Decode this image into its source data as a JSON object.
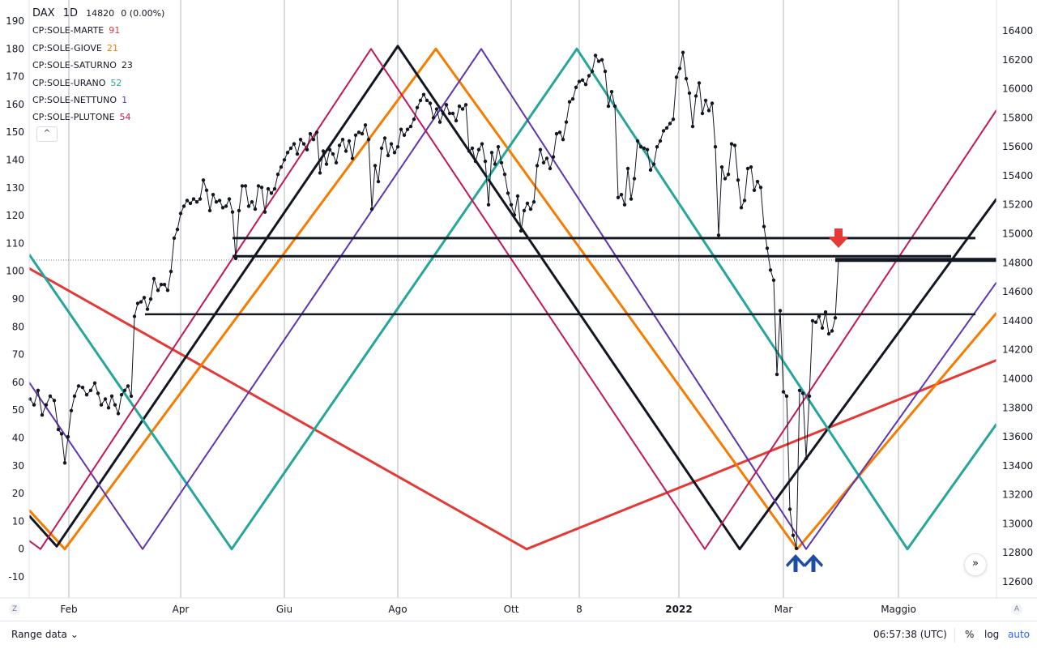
{
  "symbol": {
    "name": "DAX",
    "interval": "1D",
    "last": "14820",
    "change": "0 (0.00%)"
  },
  "legend": [
    {
      "name": "CP:SOLE-MARTE",
      "value": "91",
      "color": "#e53935"
    },
    {
      "name": "CP:SOLE-GIOVE",
      "value": "21",
      "color": "#f57c00"
    },
    {
      "name": "CP:SOLE-SATURNO",
      "value": "23",
      "color": "#131722"
    },
    {
      "name": "CP:SOLE-URANO",
      "value": "52",
      "color": "#26a69a"
    },
    {
      "name": "CP:SOLE-NETTUNO",
      "value": "1",
      "color": "#5e35b1"
    },
    {
      "name": "CP:SOLE-PLUTONE",
      "value": "54",
      "color": "#c2185b"
    }
  ],
  "collapse_glyph": "^",
  "bottom": {
    "range_label": "Range data",
    "range_chevron": "⌄",
    "clock": "06:57:38 (UTC)",
    "percent": "%",
    "log": "log",
    "auto": "auto"
  },
  "corner_left": "Z",
  "corner_right": "A",
  "goto_glyph": "»",
  "chart_data": {
    "type": "line",
    "left_axis": {
      "ticks": [
        190,
        180,
        170,
        160,
        150,
        140,
        130,
        120,
        110,
        100,
        90,
        80,
        70,
        60,
        50,
        40,
        30,
        20,
        10,
        0,
        -10
      ],
      "range": [
        -12,
        190
      ]
    },
    "right_axis": {
      "ticks": [
        16400,
        16200,
        16000,
        15800,
        15600,
        15400,
        15200,
        15000,
        14800,
        14600,
        14400,
        14200,
        14000,
        13800,
        13600,
        13400,
        13200,
        13000,
        12800,
        12600
      ],
      "range": [
        12580,
        16420
      ]
    },
    "x_axis": {
      "labels": [
        "Feb",
        "Apr",
        "Giu",
        "Ago",
        "Ott",
        "8",
        "2022",
        "Mar",
        "Maggio"
      ],
      "label_x": [
        85,
        223,
        351,
        491,
        631,
        715,
        838,
        967,
        1109
      ],
      "start_x": 36,
      "end_x": 1230,
      "bold_labels": [
        "2022"
      ]
    },
    "dotted_level": 104,
    "cycle_series": [
      {
        "name": "CP:SOLE-MARTE",
        "color": "#e53935",
        "width": 3,
        "points": [
          [
            36,
            101
          ],
          [
            650,
            0
          ],
          [
            1230,
            68
          ]
        ]
      },
      {
        "name": "CP:SOLE-GIOVE",
        "color": "#f57c00",
        "width": 3,
        "points": [
          [
            36,
            14
          ],
          [
            80,
            0
          ],
          [
            538,
            180
          ],
          [
            984,
            0
          ],
          [
            1230,
            85
          ]
        ]
      },
      {
        "name": "CP:SOLE-SATURNO",
        "color": "#131722",
        "width": 3,
        "points": [
          [
            36,
            12
          ],
          [
            70,
            1
          ],
          [
            491,
            181
          ],
          [
            913,
            0
          ],
          [
            1230,
            126
          ]
        ]
      },
      {
        "name": "CP:SOLE-URANO",
        "color": "#26a69a",
        "width": 3,
        "points": [
          [
            36,
            106
          ],
          [
            286,
            0
          ],
          [
            712,
            180
          ],
          [
            1120,
            0
          ],
          [
            1230,
            45
          ]
        ]
      },
      {
        "name": "CP:SOLE-NETTUNO",
        "color": "#5e35b1",
        "width": 2,
        "points": [
          [
            36,
            60
          ],
          [
            176,
            0
          ],
          [
            594,
            180
          ],
          [
            995,
            0
          ],
          [
            1230,
            96
          ]
        ]
      },
      {
        "name": "CP:SOLE-PLUTONE",
        "color": "#c2185b",
        "width": 2,
        "points": [
          [
            36,
            3
          ],
          [
            50,
            0
          ],
          [
            458,
            180
          ],
          [
            870,
            0
          ],
          [
            1230,
            158
          ]
        ]
      }
    ],
    "dax_series": {
      "name": "DAX",
      "color": "#131722",
      "points": [
        [
          37,
          13860
        ],
        [
          42,
          13820
        ],
        [
          47,
          13920
        ],
        [
          52,
          13750
        ],
        [
          57,
          13820
        ],
        [
          62,
          13880
        ],
        [
          67,
          13850
        ],
        [
          72,
          13650
        ],
        [
          76,
          13620
        ],
        [
          80,
          13420
        ],
        [
          84,
          13600
        ],
        [
          88,
          13780
        ],
        [
          92,
          13880
        ],
        [
          97,
          13950
        ],
        [
          102,
          13940
        ],
        [
          107,
          13890
        ],
        [
          112,
          13920
        ],
        [
          117,
          13970
        ],
        [
          121,
          13900
        ],
        [
          125,
          13820
        ],
        [
          130,
          13860
        ],
        [
          134,
          13800
        ],
        [
          138,
          13880
        ],
        [
          142,
          13820
        ],
        [
          146,
          13760
        ],
        [
          150,
          13890
        ],
        [
          154,
          13920
        ],
        [
          158,
          13950
        ],
        [
          162,
          13880
        ],
        [
          166,
          14430
        ],
        [
          170,
          14520
        ],
        [
          174,
          14530
        ],
        [
          178,
          14560
        ],
        [
          182,
          14480
        ],
        [
          186,
          14550
        ],
        [
          190,
          14690
        ],
        [
          195,
          14610
        ],
        [
          199,
          14650
        ],
        [
          203,
          14650
        ],
        [
          207,
          14610
        ],
        [
          211,
          14740
        ],
        [
          215,
          14970
        ],
        [
          219,
          15030
        ],
        [
          223,
          15140
        ],
        [
          227,
          15190
        ],
        [
          231,
          15230
        ],
        [
          235,
          15210
        ],
        [
          239,
          15240
        ],
        [
          243,
          15220
        ],
        [
          247,
          15240
        ],
        [
          251,
          15370
        ],
        [
          255,
          15300
        ],
        [
          259,
          15160
        ],
        [
          263,
          15270
        ],
        [
          267,
          15220
        ],
        [
          271,
          15230
        ],
        [
          275,
          15180
        ],
        [
          279,
          15190
        ],
        [
          283,
          15240
        ],
        [
          287,
          15150
        ],
        [
          291,
          14830
        ],
        [
          295,
          15160
        ],
        [
          299,
          15330
        ],
        [
          303,
          15330
        ],
        [
          307,
          15190
        ],
        [
          311,
          15220
        ],
        [
          315,
          15170
        ],
        [
          319,
          15330
        ],
        [
          323,
          15320
        ],
        [
          327,
          15150
        ],
        [
          331,
          15310
        ],
        [
          335,
          15280
        ],
        [
          339,
          15310
        ],
        [
          343,
          15410
        ],
        [
          347,
          15460
        ],
        [
          351,
          15510
        ],
        [
          355,
          15560
        ],
        [
          359,
          15590
        ],
        [
          363,
          15620
        ],
        [
          367,
          15550
        ],
        [
          371,
          15650
        ],
        [
          375,
          15620
        ],
        [
          379,
          15580
        ],
        [
          383,
          15690
        ],
        [
          387,
          15650
        ],
        [
          391,
          15700
        ],
        [
          395,
          15420
        ],
        [
          399,
          15570
        ],
        [
          403,
          15480
        ],
        [
          407,
          15580
        ],
        [
          411,
          15550
        ],
        [
          415,
          15490
        ],
        [
          419,
          15610
        ],
        [
          423,
          15650
        ],
        [
          427,
          15570
        ],
        [
          431,
          15640
        ],
        [
          435,
          15520
        ],
        [
          439,
          15680
        ],
        [
          443,
          15700
        ],
        [
          447,
          15690
        ],
        [
          451,
          15750
        ],
        [
          455,
          15650
        ],
        [
          459,
          15170
        ],
        [
          463,
          15470
        ],
        [
          467,
          15360
        ],
        [
          471,
          15590
        ],
        [
          475,
          15660
        ],
        [
          479,
          15540
        ],
        [
          483,
          15620
        ],
        [
          487,
          15560
        ],
        [
          491,
          15600
        ],
        [
          495,
          15720
        ],
        [
          499,
          15680
        ],
        [
          503,
          15720
        ],
        [
          507,
          15740
        ],
        [
          511,
          15790
        ],
        [
          515,
          15870
        ],
        [
          519,
          15920
        ],
        [
          523,
          15960
        ],
        [
          527,
          15920
        ],
        [
          531,
          15900
        ],
        [
          535,
          15800
        ],
        [
          539,
          15860
        ],
        [
          543,
          15770
        ],
        [
          547,
          15830
        ],
        [
          551,
          15890
        ],
        [
          555,
          15830
        ],
        [
          559,
          15830
        ],
        [
          563,
          15780
        ],
        [
          567,
          15880
        ],
        [
          571,
          15860
        ],
        [
          575,
          15890
        ],
        [
          579,
          15570
        ],
        [
          583,
          15590
        ],
        [
          587,
          15500
        ],
        [
          591,
          15580
        ],
        [
          595,
          15620
        ],
        [
          599,
          15500
        ],
        [
          603,
          15200
        ],
        [
          607,
          15560
        ],
        [
          611,
          15480
        ],
        [
          615,
          15600
        ],
        [
          619,
          15490
        ],
        [
          623,
          15410
        ],
        [
          627,
          15280
        ],
        [
          631,
          15200
        ],
        [
          635,
          15130
        ],
        [
          639,
          15260
        ],
        [
          643,
          15020
        ],
        [
          647,
          15160
        ],
        [
          651,
          15210
        ],
        [
          655,
          15170
        ],
        [
          659,
          15220
        ],
        [
          663,
          15470
        ],
        [
          667,
          15580
        ],
        [
          671,
          15490
        ],
        [
          675,
          15520
        ],
        [
          679,
          15450
        ],
        [
          683,
          15530
        ],
        [
          687,
          15690
        ],
        [
          691,
          15700
        ],
        [
          695,
          15650
        ],
        [
          699,
          15770
        ],
        [
          703,
          15910
        ],
        [
          707,
          15930
        ],
        [
          711,
          16010
        ],
        [
          715,
          16050
        ],
        [
          719,
          16060
        ],
        [
          723,
          16030
        ],
        [
          727,
          16090
        ],
        [
          731,
          16120
        ],
        [
          735,
          16230
        ],
        [
          739,
          16190
        ],
        [
          743,
          16200
        ],
        [
          747,
          16120
        ],
        [
          751,
          15880
        ],
        [
          755,
          15980
        ],
        [
          759,
          15880
        ],
        [
          763,
          15250
        ],
        [
          767,
          15270
        ],
        [
          771,
          15200
        ],
        [
          775,
          15450
        ],
        [
          779,
          15240
        ],
        [
          783,
          15380
        ],
        [
          787,
          15640
        ],
        [
          791,
          15600
        ],
        [
          795,
          15590
        ],
        [
          799,
          15580
        ],
        [
          803,
          15440
        ],
        [
          807,
          15480
        ],
        [
          811,
          15600
        ],
        [
          815,
          15640
        ],
        [
          819,
          15710
        ],
        [
          823,
          15730
        ],
        [
          827,
          15760
        ],
        [
          831,
          15790
        ],
        [
          835,
          16080
        ],
        [
          839,
          16140
        ],
        [
          843,
          16250
        ],
        [
          847,
          16070
        ],
        [
          851,
          15970
        ],
        [
          855,
          15740
        ],
        [
          859,
          15950
        ],
        [
          863,
          16040
        ],
        [
          867,
          15830
        ],
        [
          871,
          15920
        ],
        [
          875,
          15850
        ],
        [
          879,
          15900
        ],
        [
          883,
          15600
        ],
        [
          887,
          14990
        ],
        [
          891,
          15460
        ],
        [
          895,
          15380
        ],
        [
          899,
          15410
        ],
        [
          903,
          15620
        ],
        [
          907,
          15610
        ],
        [
          911,
          15370
        ],
        [
          915,
          15180
        ],
        [
          919,
          15230
        ],
        [
          923,
          15450
        ],
        [
          927,
          15460
        ],
        [
          931,
          15300
        ],
        [
          935,
          15360
        ],
        [
          939,
          15320
        ],
        [
          943,
          15050
        ],
        [
          947,
          14900
        ],
        [
          951,
          14750
        ],
        [
          955,
          14680
        ],
        [
          959,
          14030
        ],
        [
          963,
          14470
        ],
        [
          967,
          13910
        ],
        [
          971,
          13880
        ],
        [
          975,
          13100
        ],
        [
          979,
          12920
        ],
        [
          983,
          12830
        ],
        [
          987,
          13920
        ],
        [
          991,
          13900
        ],
        [
          995,
          13450
        ],
        [
          999,
          13880
        ],
        [
          1003,
          14400
        ],
        [
          1007,
          14390
        ],
        [
          1011,
          14430
        ],
        [
          1015,
          14350
        ],
        [
          1019,
          14460
        ],
        [
          1023,
          14310
        ],
        [
          1027,
          14330
        ],
        [
          1031,
          14420
        ],
        [
          1035,
          14820
        ]
      ]
    },
    "hlines": [
      {
        "x1": 287,
        "x2": 1204,
        "value": 14970,
        "width": 3
      },
      {
        "x1": 287,
        "x2": 1174,
        "value": 14845,
        "width": 3
      },
      {
        "x1": 1031,
        "x2": 1230,
        "value": 14820,
        "width": 5
      },
      {
        "x1": 179,
        "x2": 1204,
        "value": 14445,
        "width": 2.5
      }
    ],
    "arrows": [
      {
        "kind": "down",
        "x": 1035,
        "color": "#e53935"
      },
      {
        "kind": "up",
        "x": 982,
        "color": "#1e4ea3"
      },
      {
        "kind": "up",
        "x": 1004,
        "color": "#1e4ea3"
      }
    ]
  }
}
